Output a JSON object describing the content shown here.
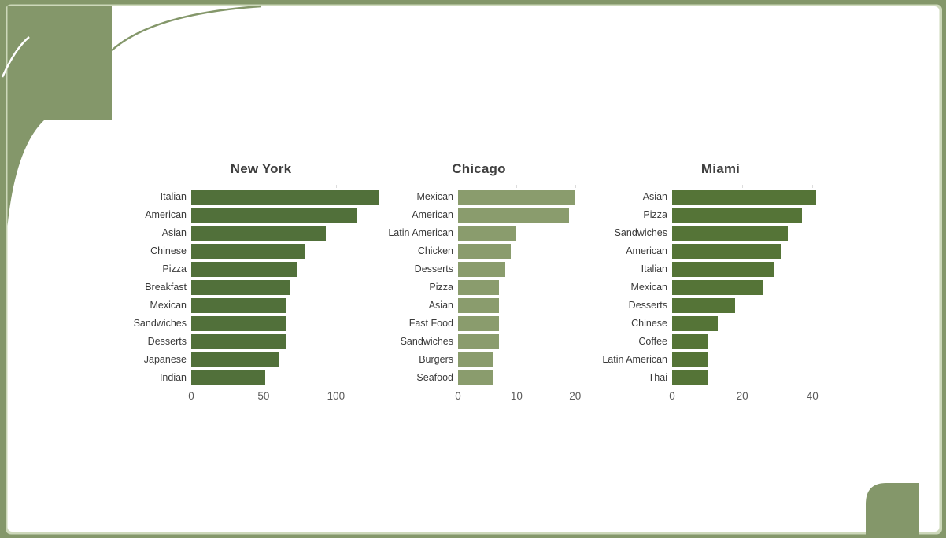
{
  "theme": {
    "frame_olive": "#84976a",
    "frame_pale_line": "#cdd8ba",
    "card_background": "#ffffff",
    "title_color": "#3f3f3f",
    "category_label_color": "#3a3a3a",
    "tick_label_color": "#5a5a5a"
  },
  "chart_data": [
    {
      "type": "bar",
      "orientation": "horizontal",
      "title": "New York",
      "bar_color": "#51703a",
      "categories": [
        "Italian",
        "American",
        "Asian",
        "Chinese",
        "Pizza",
        "Breakfast",
        "Mexican",
        "Sandwiches",
        "Desserts",
        "Japanese",
        "Indian"
      ],
      "values": [
        130,
        115,
        93,
        79,
        73,
        68,
        65,
        65,
        65,
        61,
        51
      ],
      "xticks": [
        0,
        50,
        100
      ],
      "xlim": [
        0,
        132.7
      ],
      "grid": false,
      "legend": "none"
    },
    {
      "type": "bar",
      "orientation": "horizontal",
      "title": "Chicago",
      "bar_color": "#8a9c6d",
      "categories": [
        "Mexican",
        "American",
        "Latin American",
        "Chicken",
        "Desserts",
        "Pizza",
        "Asian",
        "Fast Food",
        "Sandwiches",
        "Burgers",
        "Seafood"
      ],
      "values": [
        20,
        19,
        10,
        9,
        8,
        7,
        7,
        7,
        7,
        6,
        6
      ],
      "xticks": [
        0,
        10,
        20
      ],
      "xlim": [
        0,
        20.7
      ],
      "grid": false,
      "legend": "none"
    },
    {
      "type": "bar",
      "orientation": "horizontal",
      "title": "Miami",
      "bar_color": "#557437",
      "categories": [
        "Asian",
        "Pizza",
        "Sandwiches",
        "American",
        "Italian",
        "Mexican",
        "Desserts",
        "Chinese",
        "Coffee",
        "Latin American",
        "Thai"
      ],
      "values": [
        41,
        37,
        33,
        31,
        29,
        26,
        18,
        13,
        10,
        10,
        10
      ],
      "xticks": [
        0,
        20,
        40
      ],
      "xlim": [
        0,
        42.4
      ],
      "grid": false,
      "legend": "none"
    }
  ]
}
